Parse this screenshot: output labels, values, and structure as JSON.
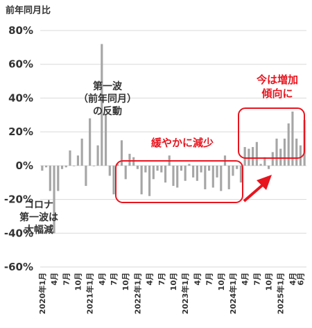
{
  "chart_data": {
    "type": "bar",
    "ylabel": "前年同月比",
    "ylim": [
      -60,
      80
    ],
    "yticks": [
      "80%",
      "60%",
      "40%",
      "20%",
      "0%",
      "-20%",
      "-40%",
      "-60%"
    ],
    "ytick_values": [
      80,
      60,
      40,
      20,
      0,
      -20,
      -40,
      -60
    ],
    "grid": true,
    "bar_color": "#a6a6a6",
    "accent_color": "#e8141e",
    "xticks": [
      {
        "index": 0,
        "label": "2020年1月"
      },
      {
        "index": 3,
        "label": "4月"
      },
      {
        "index": 6,
        "label": "7月"
      },
      {
        "index": 9,
        "label": "10月"
      },
      {
        "index": 12,
        "label": "2021年1月"
      },
      {
        "index": 15,
        "label": "4月"
      },
      {
        "index": 18,
        "label": "7月"
      },
      {
        "index": 21,
        "label": "10月"
      },
      {
        "index": 24,
        "label": "2022年1月"
      },
      {
        "index": 27,
        "label": "4月"
      },
      {
        "index": 30,
        "label": "7月"
      },
      {
        "index": 33,
        "label": "10月"
      },
      {
        "index": 36,
        "label": "2023年1月"
      },
      {
        "index": 39,
        "label": "4月"
      },
      {
        "index": 42,
        "label": "7月"
      },
      {
        "index": 45,
        "label": "10月"
      },
      {
        "index": 48,
        "label": "2024年1月"
      },
      {
        "index": 51,
        "label": "4月"
      },
      {
        "index": 54,
        "label": "7月"
      },
      {
        "index": 57,
        "label": "10月"
      },
      {
        "index": 60,
        "label": "2025年1月"
      },
      {
        "index": 63,
        "label": "4月"
      },
      {
        "index": 65,
        "label": "6月"
      }
    ],
    "values": [
      -3,
      -1,
      -15,
      -40,
      -15,
      -2,
      -1,
      9,
      0,
      6,
      16,
      -12,
      28,
      0,
      12,
      72,
      30,
      -6,
      -17,
      1,
      15,
      -8,
      7,
      5,
      -2,
      -17,
      -4,
      -18,
      -8,
      -3,
      -4,
      -10,
      6,
      -12,
      -13,
      -3,
      -9,
      1,
      -7,
      -9,
      -4,
      -14,
      -3,
      -13,
      -7,
      -15,
      6,
      -14,
      -6,
      -2,
      -10,
      11,
      10,
      11,
      14,
      1,
      5,
      -2,
      8,
      16,
      10,
      16,
      25,
      32,
      16,
      12,
      27
    ],
    "annotations": {
      "covid_drop": [
        "コロナ",
        "第一波は",
        "大幅減"
      ],
      "rebound": [
        "第一波",
        "（前年同月）",
        "の反動"
      ],
      "gradual_decrease": "緩やかに減少",
      "increase": [
        "今は増加",
        "傾向に"
      ]
    }
  }
}
